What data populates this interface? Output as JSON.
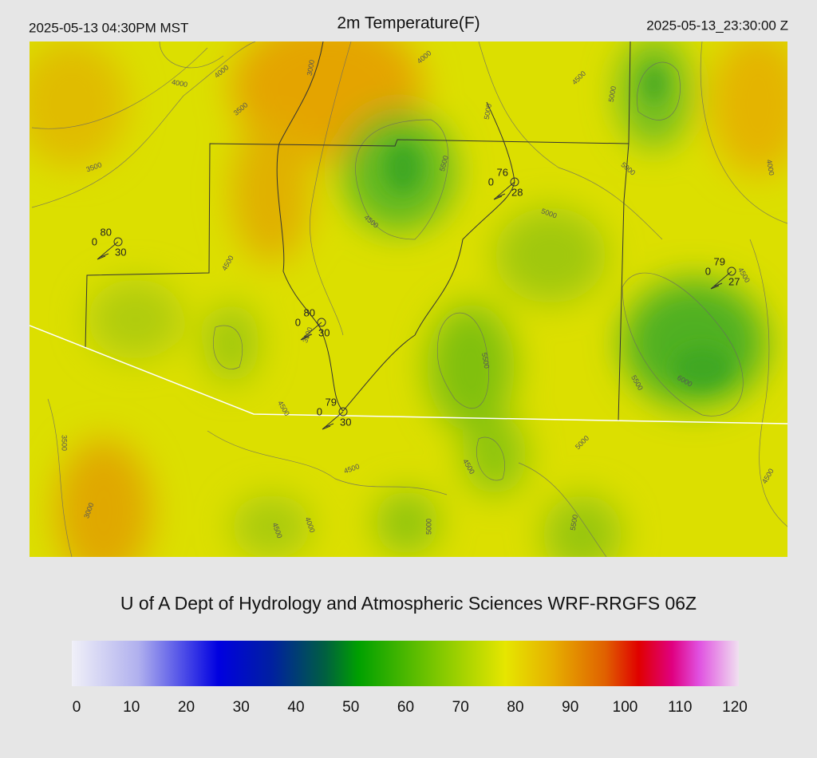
{
  "header": {
    "local_time": "2025-05-13 04:30PM MST",
    "title": "2m Temperature(F)",
    "utc_time": "2025-05-13_23:30:00 Z"
  },
  "map": {
    "contour_labels": [
      "3000",
      "4000",
      "4000",
      "3500",
      "4000",
      "4500",
      "5000",
      "5000",
      "3500",
      "5500",
      "5000",
      "4000",
      "4500",
      "5000",
      "4500",
      "4500",
      "5500",
      "5500",
      "6000",
      "3500",
      "4500",
      "4500",
      "3500",
      "5000",
      "4500",
      "4500",
      "3000",
      "4000",
      "4500",
      "5000",
      "5500"
    ],
    "stations": [
      {
        "temperature": "80",
        "dewpoint": "0",
        "wind": "30"
      },
      {
        "temperature": "76",
        "dewpoint": "0",
        "wind": "28"
      },
      {
        "temperature": "79",
        "dewpoint": "0",
        "wind": "27"
      },
      {
        "temperature": "80",
        "dewpoint": "0",
        "wind": "30"
      },
      {
        "temperature": "79",
        "dewpoint": "0",
        "wind": "30"
      }
    ]
  },
  "credit": "U of A Dept of Hydrology and Atmospheric Sciences WRF-RRGFS 06Z",
  "colorbar": {
    "range": [
      0,
      120
    ],
    "ticks": [
      0,
      10,
      20,
      30,
      40,
      50,
      60,
      70,
      80,
      90,
      100,
      110,
      120
    ]
  }
}
